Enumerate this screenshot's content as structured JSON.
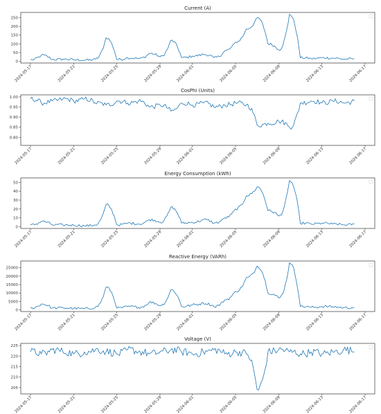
{
  "colors": {
    "series": "#1f77b4",
    "axis": "#333333"
  },
  "date_ticks": [
    "2024-05-17",
    "2024-05-21",
    "2024-05-25",
    "2024-05-29",
    "2024-06-01",
    "2024-06-05",
    "2024-06-09",
    "2024-06-13",
    "2024-06-17"
  ],
  "chart_data": [
    {
      "type": "line",
      "title": "Current (A)",
      "xlabel": "",
      "ylabel": "",
      "x_range": [
        "2024-05-17",
        "2024-06-17"
      ],
      "ylim": [
        -10,
        280
      ],
      "yticks": [
        0,
        50,
        100,
        150,
        200,
        250
      ],
      "ytick_labels": [
        "0",
        "50",
        "100",
        "150",
        "200",
        "250"
      ],
      "series": [
        {
          "points": [
            [
              "2024-05-17",
              8
            ],
            [
              "2024-05-18",
              35
            ],
            [
              "2024-05-19",
              10
            ],
            [
              "2024-05-20",
              12
            ],
            [
              "2024-05-21",
              8
            ],
            [
              "2024-05-22",
              6
            ],
            [
              "2024-05-23",
              12
            ],
            [
              "2024-05-24",
              135
            ],
            [
              "2024-05-25",
              10
            ],
            [
              "2024-05-26",
              20
            ],
            [
              "2024-05-27",
              15
            ],
            [
              "2024-05-28",
              45
            ],
            [
              "2024-05-29",
              25
            ],
            [
              "2024-05-30",
              120
            ],
            [
              "2024-05-31",
              20
            ],
            [
              "2024-06-01",
              30
            ],
            [
              "2024-06-02",
              40
            ],
            [
              "2024-06-03",
              20
            ],
            [
              "2024-06-04",
              60
            ],
            [
              "2024-06-05",
              110
            ],
            [
              "2024-06-06",
              185
            ],
            [
              "2024-06-07",
              250
            ],
            [
              "2024-06-08",
              100
            ],
            [
              "2024-06-09",
              65
            ],
            [
              "2024-06-10",
              270
            ],
            [
              "2024-06-11",
              20
            ],
            [
              "2024-06-12",
              15
            ],
            [
              "2024-06-13",
              20
            ],
            [
              "2024-06-14",
              18
            ],
            [
              "2024-06-15",
              12
            ],
            [
              "2024-06-16",
              15
            ]
          ]
        }
      ]
    },
    {
      "type": "line",
      "title": "CosPhi (Units)",
      "xlabel": "",
      "ylabel": "",
      "x_range": [
        "2024-05-17",
        "2024-06-17"
      ],
      "ylim": [
        0.76,
        1.01
      ],
      "yticks": [
        0.8,
        0.85,
        0.9,
        0.95,
        1.0
      ],
      "ytick_labels": [
        "0.80",
        "0.85",
        "0.90",
        "0.95",
        "1.00"
      ],
      "series": [
        {
          "points": [
            [
              "2024-05-17",
              0.99
            ],
            [
              "2024-05-18",
              0.97
            ],
            [
              "2024-05-19",
              0.98
            ],
            [
              "2024-05-20",
              0.99
            ],
            [
              "2024-05-21",
              0.98
            ],
            [
              "2024-05-22",
              0.99
            ],
            [
              "2024-05-23",
              0.97
            ],
            [
              "2024-05-24",
              0.96
            ],
            [
              "2024-05-25",
              0.98
            ],
            [
              "2024-05-26",
              0.97
            ],
            [
              "2024-05-27",
              0.98
            ],
            [
              "2024-05-28",
              0.95
            ],
            [
              "2024-05-29",
              0.96
            ],
            [
              "2024-05-30",
              0.93
            ],
            [
              "2024-05-31",
              0.97
            ],
            [
              "2024-06-01",
              0.96
            ],
            [
              "2024-06-02",
              0.97
            ],
            [
              "2024-06-03",
              0.95
            ],
            [
              "2024-06-04",
              0.96
            ],
            [
              "2024-06-05",
              0.97
            ],
            [
              "2024-06-06",
              0.96
            ],
            [
              "2024-06-07",
              0.86
            ],
            [
              "2024-06-08",
              0.87
            ],
            [
              "2024-06-09",
              0.88
            ],
            [
              "2024-06-10",
              0.85
            ],
            [
              "2024-06-11",
              0.97
            ],
            [
              "2024-06-12",
              0.98
            ],
            [
              "2024-06-13",
              0.97
            ],
            [
              "2024-06-14",
              0.98
            ],
            [
              "2024-06-15",
              0.97
            ],
            [
              "2024-06-16",
              0.98
            ]
          ]
        }
      ]
    },
    {
      "type": "line",
      "title": "Energy Consumption (kWh)",
      "xlabel": "",
      "ylabel": "",
      "x_range": [
        "2024-05-17",
        "2024-06-17"
      ],
      "ylim": [
        -2,
        55
      ],
      "yticks": [
        0,
        10,
        20,
        30,
        40,
        50
      ],
      "ytick_labels": [
        "0",
        "10",
        "20",
        "30",
        "40",
        "50"
      ],
      "series": [
        {
          "points": [
            [
              "2024-05-17",
              2
            ],
            [
              "2024-05-18",
              6
            ],
            [
              "2024-05-19",
              2
            ],
            [
              "2024-05-20",
              2
            ],
            [
              "2024-05-21",
              1.5
            ],
            [
              "2024-05-22",
              1
            ],
            [
              "2024-05-23",
              2
            ],
            [
              "2024-05-24",
              25
            ],
            [
              "2024-05-25",
              2
            ],
            [
              "2024-05-26",
              4
            ],
            [
              "2024-05-27",
              3
            ],
            [
              "2024-05-28",
              8
            ],
            [
              "2024-05-29",
              5
            ],
            [
              "2024-05-30",
              22
            ],
            [
              "2024-05-31",
              4
            ],
            [
              "2024-06-01",
              5
            ],
            [
              "2024-06-02",
              8
            ],
            [
              "2024-06-03",
              4
            ],
            [
              "2024-06-04",
              10
            ],
            [
              "2024-06-05",
              20
            ],
            [
              "2024-06-06",
              35
            ],
            [
              "2024-06-07",
              45
            ],
            [
              "2024-06-08",
              18
            ],
            [
              "2024-06-09",
              12
            ],
            [
              "2024-06-10",
              52
            ],
            [
              "2024-06-11",
              4
            ],
            [
              "2024-06-12",
              3
            ],
            [
              "2024-06-13",
              4
            ],
            [
              "2024-06-14",
              3
            ],
            [
              "2024-06-15",
              2
            ],
            [
              "2024-06-16",
              3
            ]
          ]
        }
      ]
    },
    {
      "type": "line",
      "title": "Reactive Energy (VARh)",
      "xlabel": "",
      "ylabel": "",
      "x_range": [
        "2024-05-17",
        "2024-06-17"
      ],
      "ylim": [
        -1000,
        29000
      ],
      "yticks": [
        0,
        5000,
        10000,
        15000,
        20000,
        25000
      ],
      "ytick_labels": [
        "0",
        "5000",
        "10000",
        "15000",
        "20000",
        "25000"
      ],
      "series": [
        {
          "points": [
            [
              "2024-05-17",
              1000
            ],
            [
              "2024-05-18",
              3500
            ],
            [
              "2024-05-19",
              1000
            ],
            [
              "2024-05-20",
              1200
            ],
            [
              "2024-05-21",
              800
            ],
            [
              "2024-05-22",
              700
            ],
            [
              "2024-05-23",
              1500
            ],
            [
              "2024-05-24",
              13500
            ],
            [
              "2024-05-25",
              1000
            ],
            [
              "2024-05-26",
              2000
            ],
            [
              "2024-05-27",
              1500
            ],
            [
              "2024-05-28",
              4500
            ],
            [
              "2024-05-29",
              2500
            ],
            [
              "2024-05-30",
              12000
            ],
            [
              "2024-05-31",
              2000
            ],
            [
              "2024-06-01",
              3000
            ],
            [
              "2024-06-02",
              4000
            ],
            [
              "2024-06-03",
              2000
            ],
            [
              "2024-06-04",
              6000
            ],
            [
              "2024-06-05",
              11000
            ],
            [
              "2024-06-06",
              19000
            ],
            [
              "2024-06-07",
              26000
            ],
            [
              "2024-06-08",
              10000
            ],
            [
              "2024-06-09",
              7000
            ],
            [
              "2024-06-10",
              28000
            ],
            [
              "2024-06-11",
              2000
            ],
            [
              "2024-06-12",
              1500
            ],
            [
              "2024-06-13",
              2000
            ],
            [
              "2024-06-14",
              1800
            ],
            [
              "2024-06-15",
              1200
            ],
            [
              "2024-06-16",
              1500
            ]
          ]
        }
      ]
    },
    {
      "type": "line",
      "title": "Voltage (V)",
      "xlabel": "",
      "ylabel": "",
      "x_range": [
        "2024-05-17",
        "2024-06-17"
      ],
      "ylim": [
        202,
        226
      ],
      "yticks": [
        205,
        210,
        215,
        220,
        225
      ],
      "ytick_labels": [
        "205",
        "210",
        "215",
        "220",
        "225"
      ],
      "series": [
        {
          "points": [
            [
              "2024-05-17",
              222
            ],
            [
              "2024-05-18",
              221
            ],
            [
              "2024-05-19",
              223
            ],
            [
              "2024-05-20",
              222
            ],
            [
              "2024-05-21",
              221
            ],
            [
              "2024-05-22",
              222
            ],
            [
              "2024-05-23",
              223
            ],
            [
              "2024-05-24",
              222
            ],
            [
              "2024-05-25",
              221
            ],
            [
              "2024-05-26",
              223
            ],
            [
              "2024-05-27",
              222
            ],
            [
              "2024-05-28",
              221
            ],
            [
              "2024-05-29",
              222
            ],
            [
              "2024-05-30",
              223
            ],
            [
              "2024-05-31",
              222
            ],
            [
              "2024-06-01",
              221
            ],
            [
              "2024-06-02",
              222
            ],
            [
              "2024-06-03",
              223
            ],
            [
              "2024-06-04",
              221
            ],
            [
              "2024-06-05",
              222
            ],
            [
              "2024-06-06",
              221
            ],
            [
              "2024-06-07",
              204
            ],
            [
              "2024-06-08",
              222
            ],
            [
              "2024-06-09",
              223
            ],
            [
              "2024-06-10",
              222
            ],
            [
              "2024-06-11",
              221
            ],
            [
              "2024-06-12",
              222
            ],
            [
              "2024-06-13",
              221
            ],
            [
              "2024-06-14",
              222
            ],
            [
              "2024-06-15",
              223
            ],
            [
              "2024-06-16",
              222
            ]
          ]
        }
      ]
    }
  ]
}
